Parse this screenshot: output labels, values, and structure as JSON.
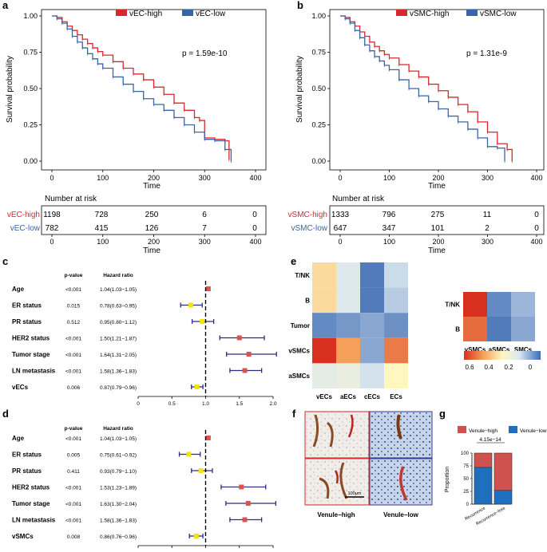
{
  "colors": {
    "red": "#d7282e",
    "blue": "#3a64a8",
    "yellow": "#f2e600",
    "grid": "#000000"
  },
  "panels": {
    "a": {
      "letter": "a",
      "p_text": "p = 1.59e-10",
      "legend": [
        "vEC-high",
        "vEC-low"
      ],
      "ylabel": "Survival probability",
      "xlabel": "Time",
      "risk_title": "Number at risk",
      "risk_rows": [
        {
          "label": "vEC-high",
          "values": [
            "1198",
            "728",
            "250",
            "6",
            "0"
          ]
        },
        {
          "label": "vEC-low",
          "values": [
            "782",
            "415",
            "126",
            "7",
            "0"
          ]
        }
      ]
    },
    "b": {
      "letter": "b",
      "p_text": "p = 1.31e-9",
      "legend": [
        "vSMC-high",
        "vSMC-low"
      ],
      "ylabel": "Survival probability",
      "xlabel": "Time",
      "risk_title": "Number at risk",
      "risk_rows": [
        {
          "label": "vSMC-high",
          "values": [
            "1333",
            "796",
            "275",
            "11",
            "0"
          ]
        },
        {
          "label": "vSMC-low",
          "values": [
            "647",
            "347",
            "101",
            "2",
            "0"
          ]
        }
      ]
    },
    "c": {
      "letter": "c",
      "header_p": "p-value",
      "header_hr": "Hazard ratio",
      "rows": [
        {
          "label": "Age",
          "p": "<0.001",
          "hr": "1.04(1.03−1.05)"
        },
        {
          "label": "ER status",
          "p": "0.015",
          "hr": "0.78(0.63−0.95)"
        },
        {
          "label": "PR status",
          "p": "0.512",
          "hr": "0.95(0.80−1.12)"
        },
        {
          "label": "HER2 status",
          "p": "<0.001",
          "hr": "1.50(1.21−1.87)"
        },
        {
          "label": "Tumor stage",
          "p": "<0.001",
          "hr": "1.64(1.31−2.05)"
        },
        {
          "label": "LN metastasis",
          "p": "<0.001",
          "hr": "1.58(1.36−1.83)"
        },
        {
          "label": "vECs",
          "p": "0.006",
          "hr": "0.87(0.79−0.96)"
        }
      ]
    },
    "d": {
      "letter": "d",
      "header_p": "p-value",
      "header_hr": "Hazard ratio",
      "rows": [
        {
          "label": "Age",
          "p": "<0.001",
          "hr": "1.04(1.03−1.05)"
        },
        {
          "label": "ER status",
          "p": "0.005",
          "hr": "0.75(0.61−0.92)"
        },
        {
          "label": "PR status",
          "p": "0.411",
          "hr": "0.93(0.79−1.10)"
        },
        {
          "label": "HER2 status",
          "p": "<0.001",
          "hr": "1.53(1.23−1.89)"
        },
        {
          "label": "Tumor stage",
          "p": "<0.001",
          "hr": "1.63(1.30−2.04)"
        },
        {
          "label": "LN metastasis",
          "p": "<0.001",
          "hr": "1.58(1.36−1.83)"
        },
        {
          "label": "vSMCs",
          "p": "0.008",
          "hr": "0.86(0.76−0.96)"
        }
      ]
    },
    "e": {
      "letter": "e",
      "legend_ticks": [
        "0.6",
        "0.4",
        "0.2",
        "0"
      ]
    },
    "f": {
      "letter": "f",
      "scale_bar": "100μm",
      "labels": [
        "Venule−high",
        "Venule−low"
      ]
    },
    "g": {
      "letter": "g",
      "legend": [
        "Venule−high",
        "Venule−low"
      ],
      "p_text": "4.15e−14",
      "ylabel": "Proportion"
    }
  },
  "chart_data": [
    {
      "id": "a",
      "type": "line",
      "title": "",
      "xlabel": "Time",
      "ylabel": "Survival probability",
      "xlim": [
        0,
        400
      ],
      "ylim": [
        0,
        1
      ],
      "xticks": [
        0,
        100,
        200,
        300,
        400
      ],
      "yticks": [
        "0.00",
        "0.25",
        "0.50",
        "0.75",
        "1.00"
      ],
      "series": [
        {
          "name": "vEC-high",
          "color": "#d7282e",
          "x": [
            0,
            10,
            20,
            30,
            40,
            50,
            60,
            70,
            80,
            90,
            100,
            120,
            140,
            160,
            180,
            200,
            220,
            240,
            260,
            280,
            290,
            300,
            320,
            340,
            348
          ],
          "y": [
            1.0,
            0.99,
            0.96,
            0.93,
            0.9,
            0.87,
            0.84,
            0.81,
            0.78,
            0.755,
            0.73,
            0.685,
            0.64,
            0.6,
            0.56,
            0.51,
            0.46,
            0.4,
            0.35,
            0.3,
            0.28,
            0.16,
            0.15,
            0.14,
            0.01
          ]
        },
        {
          "name": "vEC-low",
          "color": "#3a64a8",
          "x": [
            0,
            10,
            20,
            30,
            40,
            50,
            60,
            70,
            80,
            90,
            100,
            120,
            140,
            160,
            180,
            200,
            220,
            240,
            260,
            280,
            300,
            320,
            340,
            352
          ],
          "y": [
            1.0,
            0.98,
            0.95,
            0.91,
            0.86,
            0.82,
            0.78,
            0.74,
            0.705,
            0.67,
            0.64,
            0.58,
            0.53,
            0.48,
            0.43,
            0.39,
            0.35,
            0.3,
            0.25,
            0.2,
            0.15,
            0.14,
            0.08,
            0.0
          ]
        }
      ]
    },
    {
      "id": "b",
      "type": "line",
      "title": "",
      "xlabel": "Time",
      "ylabel": "Survival probability",
      "xlim": [
        0,
        400
      ],
      "ylim": [
        0,
        1
      ],
      "xticks": [
        0,
        100,
        200,
        300,
        400
      ],
      "yticks": [
        "0.00",
        "0.25",
        "0.50",
        "0.75",
        "1.00"
      ],
      "series": [
        {
          "name": "vSMC-high",
          "color": "#d7282e",
          "x": [
            0,
            10,
            20,
            30,
            40,
            50,
            60,
            70,
            80,
            90,
            100,
            120,
            140,
            160,
            180,
            200,
            220,
            240,
            260,
            280,
            300,
            320,
            340,
            350
          ],
          "y": [
            1.0,
            0.99,
            0.96,
            0.93,
            0.89,
            0.86,
            0.82,
            0.79,
            0.76,
            0.735,
            0.71,
            0.665,
            0.62,
            0.58,
            0.53,
            0.485,
            0.44,
            0.39,
            0.34,
            0.27,
            0.2,
            0.12,
            0.08,
            0.0
          ]
        },
        {
          "name": "vSMC-low",
          "color": "#3a64a8",
          "x": [
            0,
            10,
            20,
            30,
            40,
            50,
            60,
            70,
            80,
            90,
            100,
            120,
            140,
            160,
            180,
            200,
            220,
            240,
            260,
            280,
            300,
            320,
            335
          ],
          "y": [
            1.0,
            0.98,
            0.95,
            0.9,
            0.85,
            0.8,
            0.76,
            0.72,
            0.69,
            0.66,
            0.63,
            0.56,
            0.5,
            0.45,
            0.41,
            0.36,
            0.31,
            0.27,
            0.22,
            0.16,
            0.1,
            0.09,
            0.0
          ]
        }
      ]
    },
    {
      "id": "c",
      "type": "forest",
      "xlim": [
        0,
        2
      ],
      "xticks": [
        "0",
        "0.5",
        "1.0",
        "1.5",
        "2.0"
      ],
      "ref_line": 1.0,
      "labels": [
        "Age",
        "ER status",
        "PR status",
        "HER2 status",
        "Tumor stage",
        "LN metastasis",
        "vECs"
      ],
      "hr": [
        1.04,
        0.78,
        0.95,
        1.5,
        1.64,
        1.58,
        0.87
      ],
      "lower": [
        1.03,
        0.63,
        0.8,
        1.21,
        1.31,
        1.36,
        0.79
      ],
      "upper": [
        1.05,
        0.95,
        1.12,
        1.87,
        2.05,
        1.83,
        0.96
      ],
      "marker": [
        "red",
        "yellow",
        "yellow",
        "red",
        "red",
        "red",
        "yellow"
      ]
    },
    {
      "id": "d",
      "type": "forest",
      "xlim": [
        0,
        2
      ],
      "xticks": [
        "0",
        "0.5",
        "1.0",
        "1.5",
        "2.0"
      ],
      "ref_line": 1.0,
      "labels": [
        "Age",
        "ER status",
        "PR status",
        "HER2 status",
        "Tumor stage",
        "LN metastasis",
        "vSMCs"
      ],
      "hr": [
        1.04,
        0.75,
        0.93,
        1.53,
        1.63,
        1.58,
        0.86
      ],
      "lower": [
        1.03,
        0.61,
        0.79,
        1.23,
        1.3,
        1.36,
        0.76
      ],
      "upper": [
        1.05,
        0.92,
        1.1,
        1.89,
        2.04,
        1.83,
        0.96
      ],
      "marker": [
        "red",
        "yellow",
        "yellow",
        "red",
        "red",
        "red",
        "yellow"
      ]
    },
    {
      "id": "e1",
      "type": "heatmap",
      "range": [
        0.6,
        0
      ],
      "rows": [
        "T/NK",
        "B",
        "Tumor",
        "vSMCs",
        "aSMCs"
      ],
      "cols": [
        "vECs",
        "aECs",
        "cECs",
        "ECs"
      ],
      "values": [
        [
          0.35,
          0.18,
          0.02,
          0.15
        ],
        [
          0.35,
          0.18,
          0.02,
          0.13
        ],
        [
          0.04,
          0.06,
          0.08,
          0.05
        ],
        [
          0.6,
          0.45,
          0.08,
          0.5
        ],
        [
          0.2,
          0.22,
          0.16,
          0.3
        ]
      ]
    },
    {
      "id": "e2",
      "type": "heatmap",
      "range": [
        0.6,
        0
      ],
      "rows": [
        "T/NK",
        "B"
      ],
      "cols": [
        "vSMCs",
        "aSMCs",
        "SMCs"
      ],
      "values": [
        [
          0.6,
          0.04,
          0.1
        ],
        [
          0.52,
          0.02,
          0.08
        ]
      ]
    },
    {
      "id": "g",
      "type": "bar",
      "stacked": true,
      "ylim": [
        0,
        100
      ],
      "yticks": [
        "0",
        "25",
        "50",
        "75",
        "100"
      ],
      "categories": [
        "Recurrence",
        "Recurrence−free"
      ],
      "series": [
        {
          "name": "Venule−high",
          "color": "#d0524f",
          "values": [
            28,
            73
          ]
        },
        {
          "name": "Venule−low",
          "color": "#1f6fc1",
          "values": [
            72,
            27
          ]
        }
      ]
    }
  ]
}
